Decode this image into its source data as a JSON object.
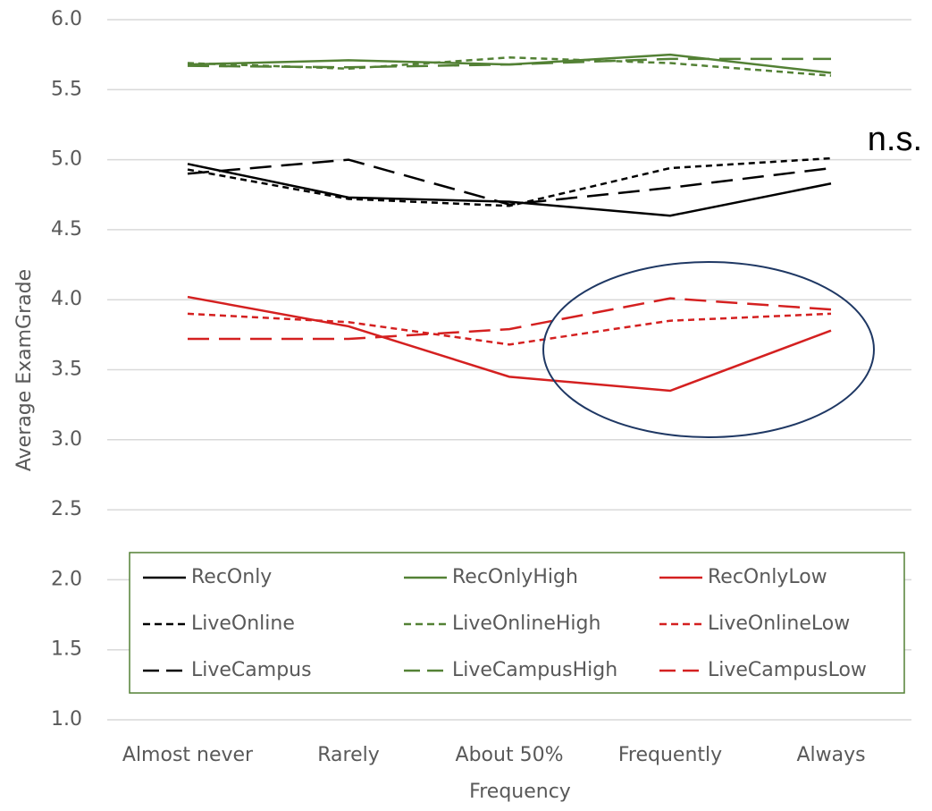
{
  "chart_data": {
    "type": "line",
    "categories": [
      "Almost never",
      "Rarely",
      "About 50%",
      "Frequently",
      "Always"
    ],
    "series": [
      {
        "name": "RecOnly",
        "color": "#000000",
        "dash": "solid",
        "values": [
          4.97,
          4.73,
          4.7,
          4.6,
          4.83
        ]
      },
      {
        "name": "RecOnlyHigh",
        "color": "#538135",
        "dash": "solid",
        "values": [
          5.68,
          5.71,
          5.68,
          5.75,
          5.62
        ]
      },
      {
        "name": "RecOnlyLow",
        "color": "#d42020",
        "dash": "solid",
        "values": [
          4.02,
          3.81,
          3.45,
          3.35,
          3.78
        ]
      },
      {
        "name": "LiveOnline",
        "color": "#000000",
        "dash": "short",
        "values": [
          4.93,
          4.72,
          4.67,
          4.94,
          5.01
        ]
      },
      {
        "name": "LiveOnlineHigh",
        "color": "#538135",
        "dash": "short",
        "values": [
          5.69,
          5.65,
          5.73,
          5.69,
          5.6
        ]
      },
      {
        "name": "LiveOnlineLow",
        "color": "#d42020",
        "dash": "short",
        "values": [
          3.9,
          3.84,
          3.68,
          3.85,
          3.9
        ]
      },
      {
        "name": "LiveCampus",
        "color": "#000000",
        "dash": "long",
        "values": [
          4.9,
          5.0,
          4.68,
          4.8,
          4.94
        ]
      },
      {
        "name": "LiveCampusHigh",
        "color": "#538135",
        "dash": "long",
        "values": [
          5.67,
          5.66,
          5.68,
          5.72,
          5.72
        ]
      },
      {
        "name": "LiveCampusLow",
        "color": "#d42020",
        "dash": "long",
        "values": [
          3.72,
          3.72,
          3.79,
          4.01,
          3.93
        ]
      }
    ],
    "ylabel": "Average ExamGrade",
    "xlabel": "Frequency",
    "annotation": "n.s.",
    "ylim": [
      1.0,
      6.0
    ],
    "yticks": [
      {
        "value": 1.0,
        "label": "1.0"
      },
      {
        "value": 1.5,
        "label": "1.5"
      },
      {
        "value": 2.0,
        "label": "2.0"
      },
      {
        "value": 2.5,
        "label": "2.5"
      },
      {
        "value": 3.0,
        "label": "3.0"
      },
      {
        "value": 3.5,
        "label": "3.5"
      },
      {
        "value": 4.0,
        "label": "4.0"
      },
      {
        "value": 4.5,
        "label": "4.5"
      },
      {
        "value": 5.0,
        "label": "5.0"
      },
      {
        "value": 5.5,
        "label": "5.5"
      },
      {
        "value": 6.0,
        "label": "6.0"
      }
    ],
    "grid": true,
    "legend": "bottom"
  }
}
